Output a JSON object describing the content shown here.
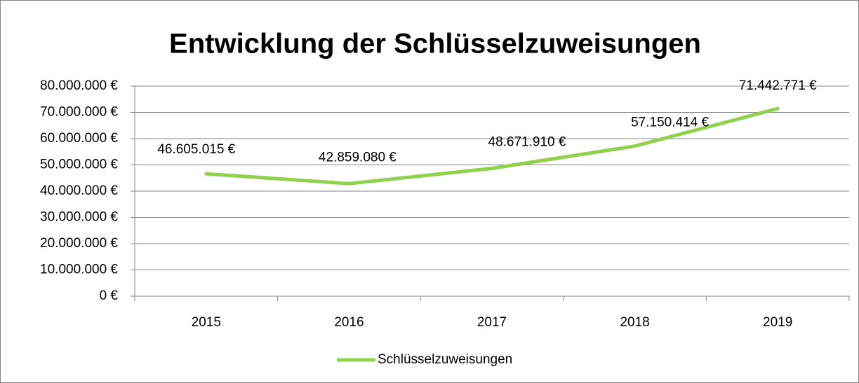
{
  "chart_data": {
    "type": "line",
    "title": "Entwicklung der Schlüsselzuweisungen",
    "categories": [
      "2015",
      "2016",
      "2017",
      "2018",
      "2019"
    ],
    "series": [
      {
        "name": "Schlüsselzuweisungen",
        "color": "#92d050",
        "values": [
          46605015,
          42859080,
          48671910,
          57150414,
          71442771
        ],
        "value_labels": [
          "46.605.015 €",
          "42.859.080 €",
          "48.671.910 €",
          "57.150.414 €",
          "71.442.771 €"
        ]
      }
    ],
    "ylim": [
      0,
      80000000
    ],
    "yticks": [
      {
        "value": 0,
        "label": "0 €"
      },
      {
        "value": 10000000,
        "label": "10.000.000 €"
      },
      {
        "value": 20000000,
        "label": "20.000.000 €"
      },
      {
        "value": 30000000,
        "label": "30.000.000 €"
      },
      {
        "value": 40000000,
        "label": "40.000.000 €"
      },
      {
        "value": 50000000,
        "label": "50.000.000 €"
      },
      {
        "value": 60000000,
        "label": "60.000.000 €"
      },
      {
        "value": 70000000,
        "label": "70.000.000 €"
      },
      {
        "value": 80000000,
        "label": "80.000.000 €"
      }
    ],
    "grid": true,
    "legend": "bottom"
  }
}
